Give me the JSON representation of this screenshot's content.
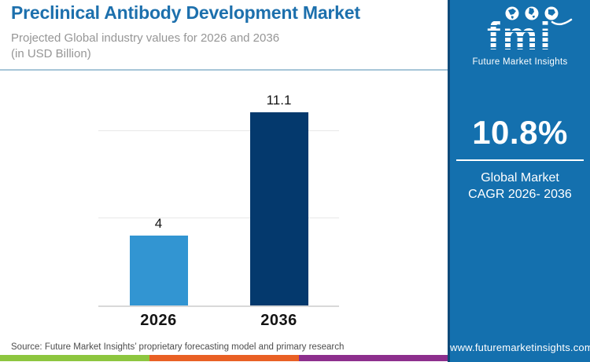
{
  "header": {
    "title": "Preclinical Antibody Development Market",
    "subtitle_line1": "Projected Global industry values for 2026 and 2036",
    "subtitle_line2": "(in USD Billion)"
  },
  "chart_data": {
    "type": "bar",
    "categories": [
      "2026",
      "2036"
    ],
    "values": [
      4,
      11.1
    ],
    "value_labels": [
      "4",
      "11.1"
    ],
    "bar_colors": [
      "#3295d2",
      "#04396d"
    ],
    "title": "Preclinical Antibody Development Market",
    "xlabel": "",
    "ylabel": "USD Billion",
    "ylim": [
      0,
      13
    ],
    "gridlines": [
      5,
      10
    ],
    "grid": "horizontal-only",
    "legend": "none"
  },
  "source": {
    "text": "Source: Future Market Insights’ proprietary forecasting model and primary research"
  },
  "footer_strip": {
    "green": "#8dc63f",
    "orange": "#e96024",
    "purple": "#8d2f8d"
  },
  "sidebar": {
    "background": "#1470ae",
    "logo": {
      "wordmark": "fmi",
      "tagline": "Future Market Insights",
      "icons": [
        "globe-americas-icon",
        "globe-europe-icon",
        "globe-hands-icon",
        "swoosh-icon"
      ]
    },
    "stat": {
      "value": "10.8%",
      "label_line1": "Global Market",
      "label_line2": "CAGR 2026- 2036"
    },
    "website": "www.futuremarketinsights.com"
  }
}
